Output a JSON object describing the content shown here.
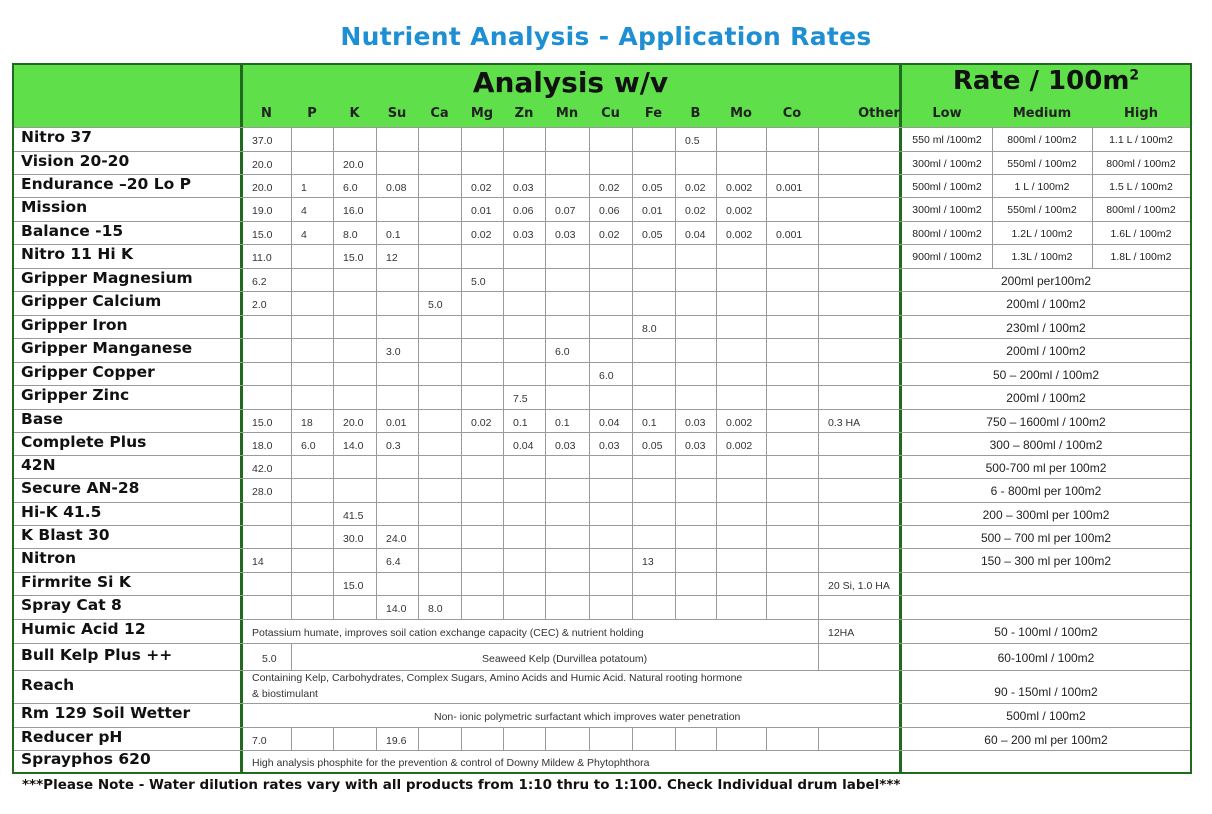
{
  "title": "Nutrient Analysis - Application Rates",
  "analysis_header": "Analysis w/v",
  "rate_header": "Rate / 100m",
  "rate_header_sup": "2",
  "analysis_columns": [
    "N",
    "P",
    "K",
    "Su",
    "Ca",
    "Mg",
    "Zn",
    "Mn",
    "Cu",
    "Fe",
    "B",
    "Mo",
    "Co",
    "Other"
  ],
  "rate_columns": [
    "Low",
    "Medium",
    "High"
  ],
  "rows": [
    {
      "name": "Nitro 37",
      "cells": {
        "N": "37.0",
        "B": "0.5"
      },
      "rates": [
        "550 ml /100m2",
        "800ml / 100m2",
        "1.1 L / 100m2"
      ]
    },
    {
      "name": "Vision 20-20",
      "cells": {
        "N": "20.0",
        "K": "20.0"
      },
      "rates": [
        "300ml / 100m2",
        "550ml / 100m2",
        "800ml / 100m2"
      ]
    },
    {
      "name": "Endurance –20 Lo P",
      "cells": {
        "N": "20.0",
        "P": "1",
        "K": "6.0",
        "Su": "0.08",
        "Mg": "0.02",
        "Zn": "0.03",
        "Cu": "0.02",
        "Fe": "0.05",
        "B": "0.02",
        "Mo": "0.002",
        "Co": "0.001"
      },
      "rates": [
        "500ml / 100m2",
        "1 L / 100m2",
        "1.5 L / 100m2"
      ]
    },
    {
      "name": "Mission",
      "cells": {
        "N": "19.0",
        "P": "4",
        "K": "16.0",
        "Mg": "0.01",
        "Zn": "0.06",
        "Mn": "0.07",
        "Cu": "0.06",
        "Fe": "0.01",
        "B": "0.02",
        "Mo": "0.002"
      },
      "rates": [
        "300ml / 100m2",
        "550ml / 100m2",
        "800ml / 100m2"
      ]
    },
    {
      "name": "Balance -15",
      "cells": {
        "N": "15.0",
        "P": "4",
        "K": "8.0",
        "Su": "0.1",
        "Mg": "0.02",
        "Zn": "0.03",
        "Mn": "0.03",
        "Cu": "0.02",
        "Fe": "0.05",
        "B": "0.04",
        "Mo": "0.002",
        "Co": "0.001"
      },
      "rates": [
        "800ml / 100m2",
        "1.2L / 100m2",
        "1.6L / 100m2"
      ]
    },
    {
      "name": "Nitro 11 Hi K",
      "cells": {
        "N": "11.0",
        "K": "15.0",
        "Su": "12"
      },
      "rates": [
        "900ml / 100m2",
        "1.3L / 100m2",
        "1.8L / 100m2"
      ]
    },
    {
      "name": "Gripper Magnesium",
      "cells": {
        "N": "6.2",
        "Mg": "5.0"
      },
      "rate": "200ml per100m2"
    },
    {
      "name": "Gripper Calcium",
      "cells": {
        "N": "2.0",
        "Ca": "5.0"
      },
      "rate": "200ml / 100m2"
    },
    {
      "name": "Gripper Iron",
      "cells": {
        "Fe": "8.0"
      },
      "rate": "230ml / 100m2"
    },
    {
      "name": "Gripper Manganese",
      "cells": {
        "Su": "3.0",
        "Mn": "6.0"
      },
      "rate": "200ml / 100m2"
    },
    {
      "name": "Gripper Copper",
      "cells": {
        "Cu": "6.0"
      },
      "rate": "50 – 200ml / 100m2"
    },
    {
      "name": "Gripper Zinc",
      "cells": {
        "Zn": "7.5"
      },
      "rate": "200ml / 100m2"
    },
    {
      "name": "Base",
      "cells": {
        "N": "15.0",
        "P": "18",
        "K": "20.0",
        "Su": "0.01",
        "Mg": "0.02",
        "Zn": "0.1",
        "Mn": "0.1",
        "Cu": "0.04",
        "Fe": "0.1",
        "B": "0.03",
        "Mo": "0.002",
        "Other": "0.3 HA"
      },
      "rate": "750 – 1600ml / 100m2"
    },
    {
      "name": "Complete Plus",
      "cells": {
        "N": "18.0",
        "P": "6.0",
        "K": "14.0",
        "Su": "0.3",
        "Zn": "0.04",
        "Mn": "0.03",
        "Cu": "0.03",
        "Fe": "0.05",
        "B": "0.03",
        "Mo": "0.002"
      },
      "rate": "300 – 800ml / 100m2"
    },
    {
      "name": "42N",
      "cells": {
        "N": "42.0"
      },
      "rate": "500-700 ml per 100m2"
    },
    {
      "name": "Secure AN-28",
      "cells": {
        "N": "28.0"
      },
      "rate": "6 - 800ml per 100m2"
    },
    {
      "name": "Hi-K 41.5",
      "cells": {
        "K": "41.5"
      },
      "rate": "200 – 300ml per 100m2"
    },
    {
      "name": "K Blast 30",
      "cells": {
        "K": "30.0",
        "Su": "24.0"
      },
      "rate": "500 – 700 ml per 100m2"
    },
    {
      "name": "Nitron",
      "cells": {
        "N": "14",
        "Su": "6.4",
        "Fe": "13"
      },
      "rate": "150 – 300 ml per 100m2"
    },
    {
      "name": "Firmrite Si K",
      "cells": {
        "K": "15.0",
        "Other": "20 Si,  1.0 HA"
      },
      "rate": ""
    },
    {
      "name": "Spray Cat 8",
      "cells": {
        "Su": "14.0",
        "Ca": "8.0"
      },
      "rate": ""
    },
    {
      "name": "Humic Acid 12",
      "note": "Potassium humate, improves soil cation exchange capacity (CEC) & nutrient holding",
      "cells": {
        "Other": "12HA"
      },
      "rate": "50 - 100ml / 100m2"
    },
    {
      "name": "Bull Kelp Plus ++",
      "cells": {
        "N": "5.0"
      },
      "note": "Seaweed Kelp (Durvillea potatoum)",
      "rate": "60-100ml / 100m2"
    },
    {
      "name": "Reach",
      "note": "Containing Kelp, Carbohydrates, Complex Sugars, Amino Acids and Humic Acid. Natural rooting hormone",
      "note2": "& biostimulant",
      "rate": "90 - 150ml / 100m2"
    },
    {
      "name": "Rm 129 Soil Wetter",
      "note": "Non- ionic polymetric surfactant which improves water penetration",
      "rate": "500ml / 100m2"
    },
    {
      "name": "Reducer pH",
      "cells": {
        "N": "7.0",
        "Su": "19.6"
      },
      "rate": "60 – 200 ml per 100m2"
    },
    {
      "name": "Sprayphos 620",
      "note": "High analysis phosphite for the prevention & control of Downy Mildew & Phytophthora",
      "rate": ""
    }
  ],
  "footer_note": "***Please Note - Water dilution rates vary with all products from 1:10 thru to 1:100. Check Individual drum label***"
}
